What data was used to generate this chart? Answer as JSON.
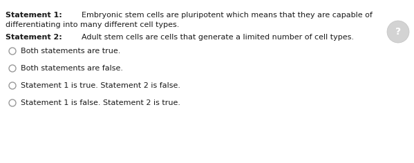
{
  "background_color": "#ffffff",
  "statement1_bold": "Statement 1: ",
  "statement1_rest_line1": "Embryonic stem cells are pluripotent which means that they are capable of",
  "statement1_rest_line2": "differentiating into many different cell types.",
  "statement2_bold": "Statement 2: ",
  "statement2_rest": "Adult stem cells are cells that generate a limited number of cell types.",
  "options": [
    "Both statements are true.",
    "Both statements are false.",
    "Statement 1 is true. Statement 2 is false.",
    "Statement 1 is false. Statement 2 is true."
  ],
  "text_color": "#1a1a1a",
  "option_color": "#1a1a1a",
  "circle_edge_color": "#999999",
  "font_size_statement": 8.0,
  "font_size_option": 8.0,
  "help_circle_color": "#cccccc",
  "help_circle_edge": "#bbbbbb"
}
